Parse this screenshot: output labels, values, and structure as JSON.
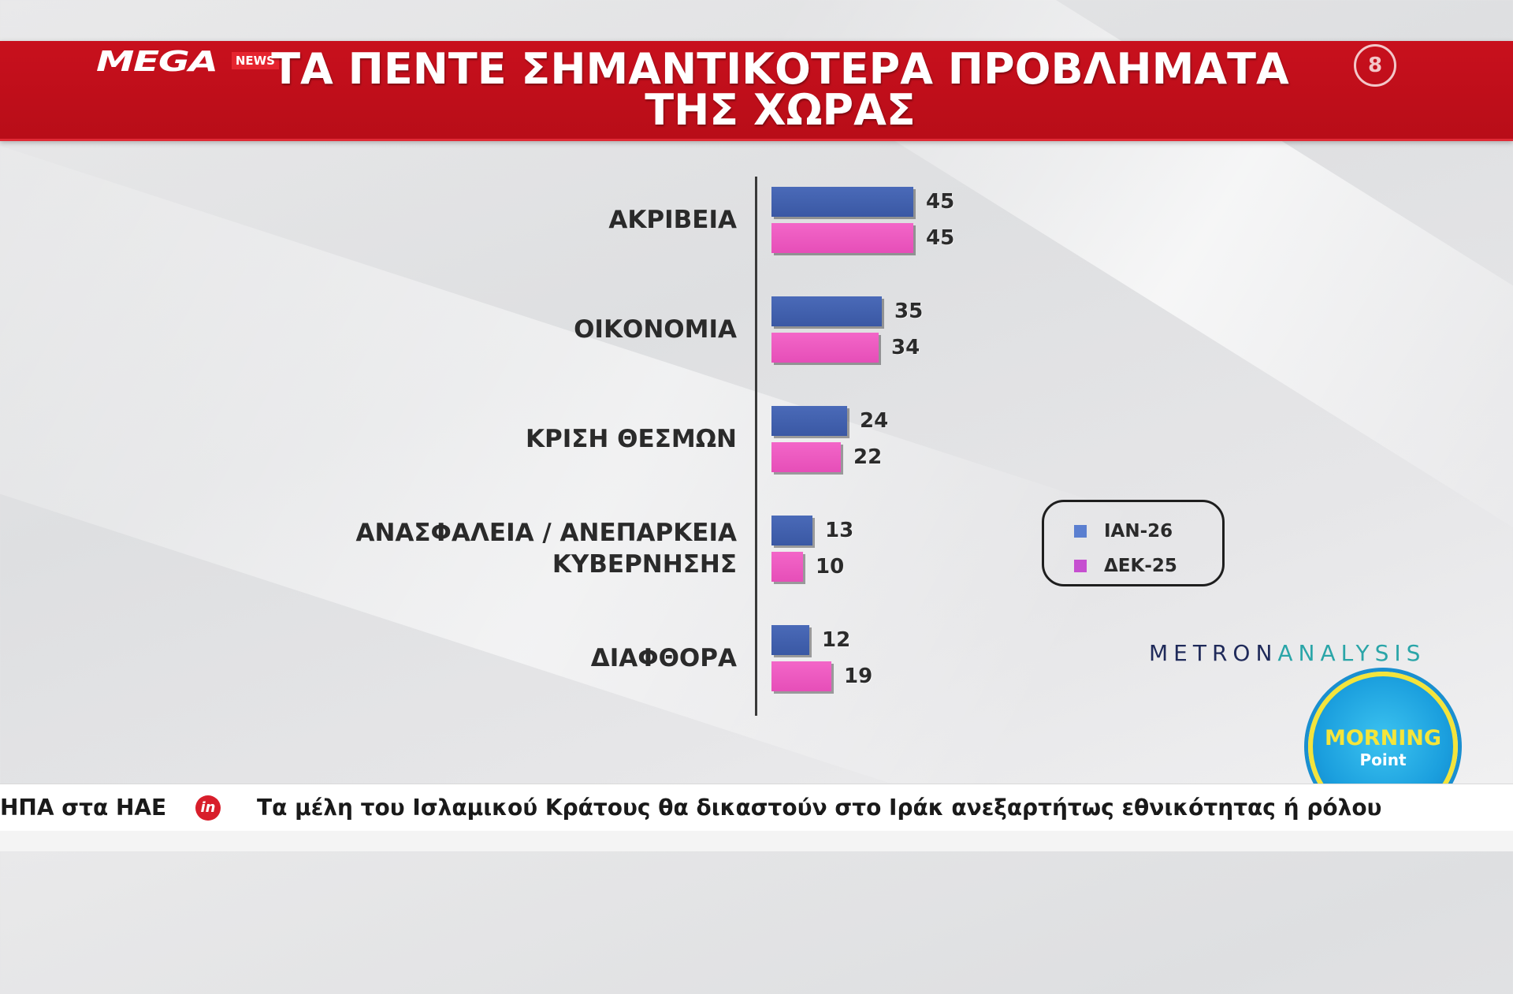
{
  "header": {
    "logo_text": "MEGA",
    "logo_badge": "NEWS",
    "title_line1": "ΤΑ ΠΕΝΤΕ ΣΗΜΑΝΤΙΚΟΤΕΡΑ ΠΡΟΒΛΗΜΑΤΑ",
    "title_line2": "ΤΗΣ ΧΩΡΑΣ",
    "channel_number": "8"
  },
  "chart_data": {
    "type": "bar",
    "orientation": "horizontal",
    "title": "ΤΑ ΠΕΝΤΕ ΣΗΜΑΝΤΙΚΟΤΕΡΑ ΠΡΟΒΛΗΜΑΤΑ ΤΗΣ ΧΩΡΑΣ",
    "categories": [
      [
        "ΑΚΡΙΒΕΙΑ"
      ],
      [
        "ΟΙΚΟΝΟΜΙΑ"
      ],
      [
        "ΚΡΙΣΗ ΘΕΣΜΩΝ"
      ],
      [
        "ΑΝΑΣΦΑΛΕΙΑ / ΑΝΕΠΑΡΚΕΙΑ",
        "ΚΥΒΕΡΝΗΣΗΣ"
      ],
      [
        "ΔΙΑΦΘΟΡΑ"
      ]
    ],
    "series": [
      {
        "name": "ΙΑΝ-26",
        "color": "#3f5fae",
        "values": [
          45,
          35,
          24,
          13,
          12
        ]
      },
      {
        "name": "ΔΕΚ-25",
        "color": "#ea55bf",
        "values": [
          45,
          34,
          22,
          10,
          19
        ]
      }
    ],
    "xlim": [
      0,
      100
    ],
    "legend_position": "right",
    "grid": false
  },
  "legend": [
    {
      "label": "ΙΑΝ-26",
      "color": "#5b7fd0"
    },
    {
      "label": "ΔΕΚ-25",
      "color": "#c64fd0"
    }
  ],
  "source": {
    "part1": "METRON",
    "part2": "ANALYSIS"
  },
  "show": {
    "title": "MORNING",
    "subtitle": "Point"
  },
  "ticker": {
    "item1": "ΗΠΑ στα ΗΑΕ",
    "icon": "in",
    "item2": "Τα μέλη του Ισλαμικού Κράτους θα δικαστούν στο Ιράκ ανεξαρτήτως εθνικότητας ή ρόλου"
  }
}
